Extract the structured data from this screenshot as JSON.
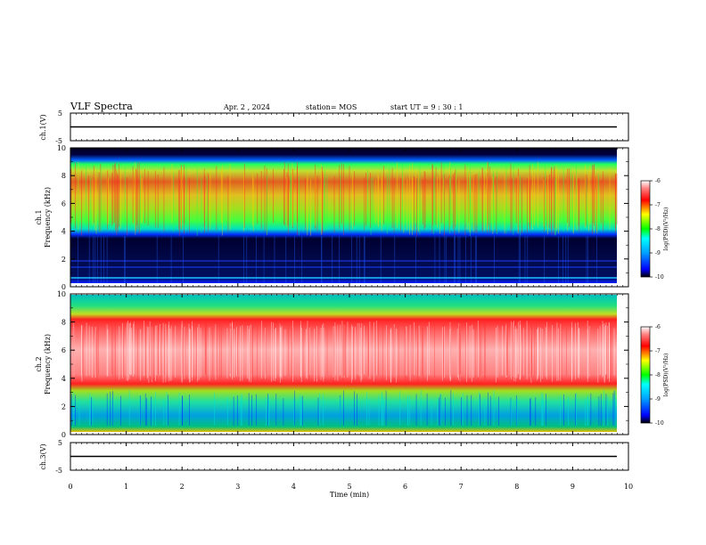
{
  "header": {
    "title": "VLF Spectra",
    "date": "Apr. 2 , 2024",
    "station": "station= MOS",
    "start": "start UT = 9 : 30 : 1"
  },
  "chart_data": [
    {
      "type": "line",
      "id": "ch1_waveform",
      "ylabel": "ch.1(V)",
      "ylim": [
        -5,
        5
      ],
      "yticks": [
        "5",
        "-5"
      ],
      "xlim": [
        0,
        10
      ],
      "grid": false
    },
    {
      "type": "heatmap",
      "id": "ch1_spectrogram",
      "ylabel": "ch.1\nFrequency (kHz)",
      "ylabel_line1": "ch.1",
      "ylabel_line2": "Frequency (kHz)",
      "ylim": [
        0,
        10
      ],
      "yticks": [
        "0",
        "2",
        "4",
        "6",
        "8",
        "10"
      ],
      "xlim": [
        0,
        10
      ],
      "colorbar": {
        "label": "log(PSD)(V²/Hz)",
        "range": [
          -10,
          -6
        ],
        "ticks": [
          "-6",
          "-7",
          "-8",
          "-9",
          "-10"
        ]
      },
      "bands_kHz": [
        {
          "from": 0,
          "to": 0.5,
          "level": "blue"
        },
        {
          "from": 0.5,
          "to": 3.5,
          "level": "black/blue"
        },
        {
          "from": 3.5,
          "to": 9.0,
          "level": "green-yellow-red"
        },
        {
          "from": 9.0,
          "to": 10,
          "level": "black/blue"
        }
      ]
    },
    {
      "type": "heatmap",
      "id": "ch2_spectrogram",
      "ylabel_line1": "ch.2",
      "ylabel_line2": "Frequency (kHz)",
      "ylim": [
        0,
        10
      ],
      "yticks": [
        "0",
        "2",
        "4",
        "6",
        "8",
        "10"
      ],
      "xlim": [
        0,
        10
      ],
      "colorbar": {
        "label": "log(PSD)(V²/Hz)",
        "range": [
          -10,
          -6
        ],
        "ticks": [
          "-6",
          "-7",
          "-8",
          "-9",
          "-10"
        ]
      },
      "bands_kHz": [
        {
          "from": 0,
          "to": 3.5,
          "level": "blue-cyan-green"
        },
        {
          "from": 3.5,
          "to": 8.5,
          "level": "red"
        },
        {
          "from": 8.5,
          "to": 10,
          "level": "green-cyan"
        }
      ]
    },
    {
      "type": "line",
      "id": "ch3_waveform",
      "ylabel": "ch.3(V)",
      "ylim": [
        -5,
        5
      ],
      "yticks": [
        "5",
        "-5"
      ],
      "xlim": [
        0,
        10
      ],
      "grid": false
    }
  ],
  "xaxis": {
    "label": "Time (min)",
    "range": [
      0,
      10
    ],
    "ticks": [
      "0",
      "1",
      "2",
      "3",
      "4",
      "5",
      "6",
      "7",
      "8",
      "9",
      "10"
    ],
    "data_end": 9.83
  }
}
